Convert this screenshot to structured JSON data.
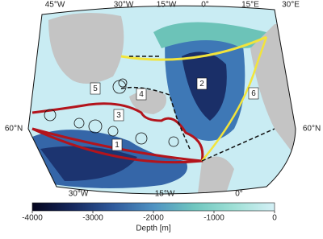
{
  "map": {
    "top_labels": [
      "45°W",
      "30°W",
      "15°W",
      "0°",
      "15°E",
      "30°E"
    ],
    "bottom_labels": [
      "30°W",
      "15°W",
      "0°"
    ],
    "left_labels": [
      "60°N"
    ],
    "right_labels": [
      "60°N"
    ],
    "regions": [
      "1",
      "2",
      "3",
      "4",
      "5",
      "6"
    ]
  },
  "colorbar": {
    "label": "Depth [m]",
    "lim": [
      -4000,
      0
    ],
    "ticks": [
      -4000,
      -3000,
      -2000,
      -1000,
      0
    ],
    "colors": [
      "#05051e",
      "#16285e",
      "#2f5a9c",
      "#4f92c2",
      "#6fc6bf",
      "#9fe0d6",
      "#d4f0f6"
    ]
  }
}
